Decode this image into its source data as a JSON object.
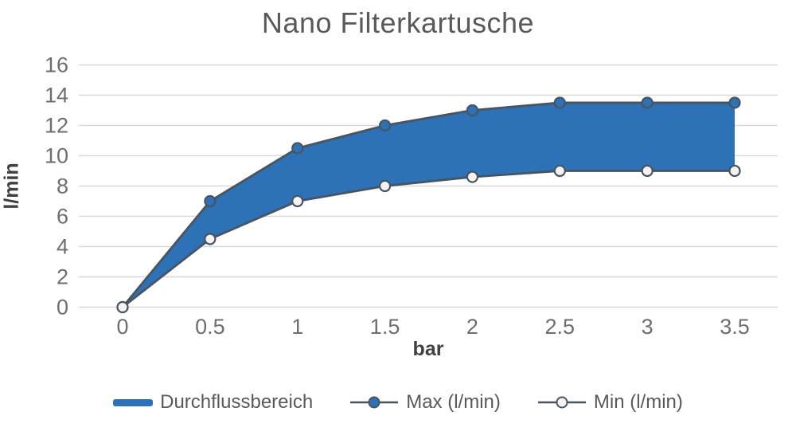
{
  "title": "Nano Filterkartusche",
  "chart_data": {
    "type": "area",
    "title": "Nano Filterkartusche",
    "x": [
      0,
      0.5,
      1,
      1.5,
      2,
      2.5,
      3,
      3.5
    ],
    "series": [
      {
        "name": "Max (l/min)",
        "values": [
          0,
          7,
          10.5,
          12,
          13,
          13.5,
          13.5,
          13.5
        ],
        "marker": "filled-circle"
      },
      {
        "name": "Min (l/min)",
        "values": [
          0,
          4.5,
          7,
          8,
          8.6,
          9,
          9,
          9
        ],
        "marker": "open-circle"
      }
    ],
    "area_series_name": "Durchflussbereich",
    "xlabel": "bar",
    "ylabel": "l/min",
    "xticks": [
      "0",
      "0.5",
      "1",
      "1.5",
      "2",
      "2.5",
      "3",
      "3.5"
    ],
    "yticks": [
      "0",
      "2",
      "4",
      "6",
      "8",
      "10",
      "12",
      "14",
      "16"
    ],
    "ylim": [
      0,
      16
    ],
    "xlim": [
      0,
      3.5
    ],
    "grid": "horizontal",
    "legend_position": "bottom"
  },
  "legend": {
    "items": [
      {
        "label": "Durchflussbereich",
        "swatch": "area"
      },
      {
        "label": "Max (l/min)",
        "swatch": "line-filled-circle"
      },
      {
        "label": "Min (l/min)",
        "swatch": "line-open-circle"
      }
    ]
  },
  "colors": {
    "area_fill": "#2D71B6",
    "line": "#495461",
    "max_marker_fill": "#2D71B6",
    "min_marker_fill": "#F4F3F1",
    "gridline": "#D8D8D8",
    "title_text": "#595959",
    "tick_text": "#6E6E6E",
    "axis_title_text": "#404040",
    "legend_text": "#595959",
    "background": "#FFFFFF"
  }
}
